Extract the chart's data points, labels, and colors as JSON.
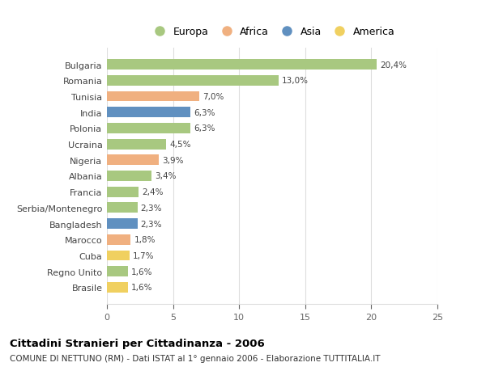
{
  "countries": [
    "Bulgaria",
    "Romania",
    "Tunisia",
    "India",
    "Polonia",
    "Ucraina",
    "Nigeria",
    "Albania",
    "Francia",
    "Serbia/Montenegro",
    "Bangladesh",
    "Marocco",
    "Cuba",
    "Regno Unito",
    "Brasile"
  ],
  "values": [
    20.4,
    13.0,
    7.0,
    6.3,
    6.3,
    4.5,
    3.9,
    3.4,
    2.4,
    2.3,
    2.3,
    1.8,
    1.7,
    1.6,
    1.6
  ],
  "labels": [
    "20,4%",
    "13,0%",
    "7,0%",
    "6,3%",
    "6,3%",
    "4,5%",
    "3,9%",
    "3,4%",
    "2,4%",
    "2,3%",
    "2,3%",
    "1,8%",
    "1,7%",
    "1,6%",
    "1,6%"
  ],
  "continents": [
    "Europa",
    "Europa",
    "Africa",
    "Asia",
    "Europa",
    "Europa",
    "Africa",
    "Europa",
    "Europa",
    "Europa",
    "Asia",
    "Africa",
    "America",
    "Europa",
    "America"
  ],
  "continent_colors": {
    "Europa": "#a8c880",
    "Africa": "#f0b080",
    "Asia": "#6090c0",
    "America": "#f0d060"
  },
  "legend_order": [
    "Europa",
    "Africa",
    "Asia",
    "America"
  ],
  "background_color": "#ffffff",
  "title": "Cittadini Stranieri per Cittadinanza - 2006",
  "subtitle": "COMUNE DI NETTUNO (RM) - Dati ISTAT al 1° gennaio 2006 - Elaborazione TUTTITALIA.IT",
  "xlim": [
    0,
    25
  ],
  "xticks": [
    0,
    5,
    10,
    15,
    20,
    25
  ],
  "grid_color": "#dddddd",
  "bar_height": 0.65
}
